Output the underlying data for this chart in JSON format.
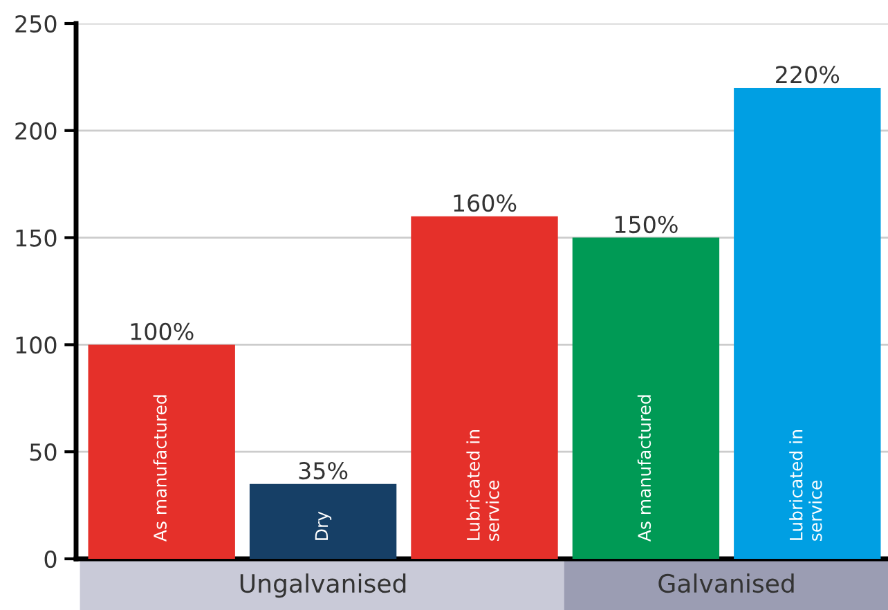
{
  "chart_data": {
    "type": "bar",
    "categories": [
      "As manufactured",
      "Dry",
      "Lubricated in\nservice",
      "As manufactured",
      "Lubricated in\nservice"
    ],
    "values": [
      100,
      35,
      160,
      150,
      220
    ],
    "colors": [
      "#e5302a",
      "#163f66",
      "#e5302a",
      "#009a55",
      "#009fe3"
    ],
    "value_labels": [
      "100%",
      "35%",
      "160%",
      "150%",
      "220%"
    ],
    "annotations": [
      "Ungalvanised",
      "Galvanised"
    ],
    "ylim": [
      0,
      250
    ],
    "yticks": [
      0,
      50,
      100,
      150,
      200,
      250
    ],
    "grid": "y"
  }
}
